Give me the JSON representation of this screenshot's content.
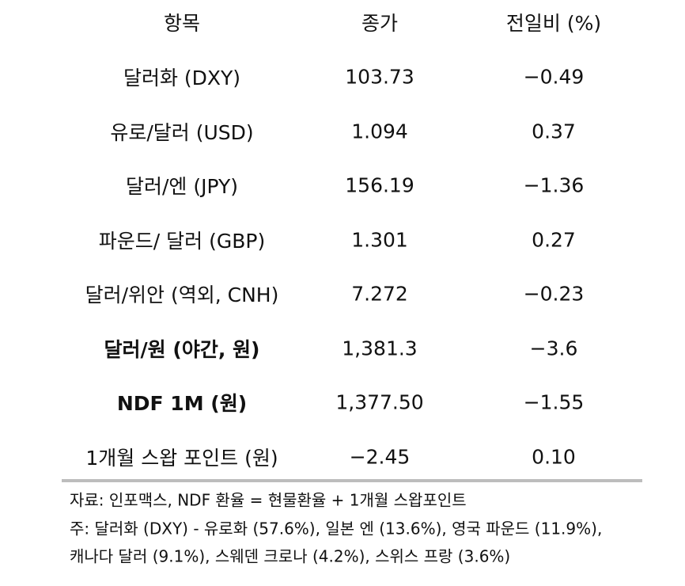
{
  "table": {
    "header": [
      "항목",
      "종가",
      "전일비 (%)"
    ],
    "rows": [
      [
        "달러화 (DXY)",
        "103.73",
        "−0.49"
      ],
      [
        "유로/달러 (USD)",
        "1.094",
        "0.37"
      ],
      [
        "달러/엔 (JPY)",
        "156.19",
        "−1.36"
      ],
      [
        "파운드/ 달러 (GBP)",
        "1.301",
        "0.27"
      ],
      [
        "달러/위안 (역외, CNH)",
        "7.272",
        "−0.23"
      ],
      [
        "달러/원 (야간, 원)",
        "1,381.3",
        "−3.6"
      ],
      [
        "NDF 1M (원)",
        "1,377.50",
        "−1.55"
      ],
      [
        "1개월 스왑 포인트 (원)",
        "−2.45",
        "0.10"
      ]
    ]
  },
  "notes": [
    "자료: 인포맥스, NDF 환율 = 현물환율 + 1개월 스왑포인트",
    "주: 달러화 (DXY) - 유로화 (57.6%), 일본 엔 (13.6%), 영국 파운드 (11.9%),",
    "캐나다 달러 (9.1%), 스웨덴 크로나 (4.2%), 스위스 프랑 (3.6%)"
  ]
}
